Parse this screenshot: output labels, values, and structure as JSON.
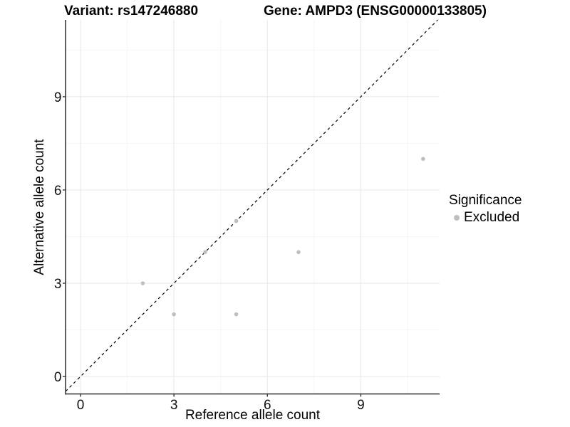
{
  "titles": {
    "left": "Variant: rs147246880",
    "right": "Gene: AMPD3 (ENSG00000133805)"
  },
  "axes": {
    "x": {
      "label": "Reference allele count",
      "tick_labels": [
        "0",
        "3",
        "6",
        "9"
      ]
    },
    "y": {
      "label": "Alternative allele count",
      "tick_labels": [
        "0",
        "3",
        "6",
        "9"
      ]
    }
  },
  "legend": {
    "title": "Significance",
    "items": [
      {
        "label": "Excluded",
        "color": "#bebebe"
      }
    ]
  },
  "chart_data": {
    "type": "scatter",
    "title": "Variant: rs147246880   Gene: AMPD3 (ENSG00000133805)",
    "xlabel": "Reference allele count",
    "ylabel": "Alternative allele count",
    "xlim": [
      -0.48,
      11.53
    ],
    "ylim": [
      -0.56,
      11.47
    ],
    "x_major_ticks": [
      0,
      3,
      6,
      9
    ],
    "y_major_ticks": [
      0,
      3,
      6,
      9
    ],
    "x_minor_ticks": [
      1.5,
      4.5,
      7.5,
      10.5
    ],
    "y_minor_ticks": [
      1.5,
      4.5,
      7.5,
      10.5
    ],
    "grid": true,
    "legend_position": "right",
    "series": [
      {
        "name": "Excluded",
        "color": "#bebebe",
        "points": [
          [
            2,
            3
          ],
          [
            3,
            2
          ],
          [
            4,
            4
          ],
          [
            5,
            2
          ],
          [
            5,
            5
          ],
          [
            7,
            4
          ],
          [
            11,
            7
          ]
        ]
      }
    ],
    "reference_line": {
      "type": "identity y=x",
      "style": "dashed",
      "color": "#000000"
    }
  },
  "colors": {
    "background": "#ffffff",
    "point": "#bebebe",
    "grid_major": "#ebebeb",
    "grid_minor": "#f5f5f5",
    "axis_line": "#4d4d4d",
    "tick_mark": "#333333",
    "tick_text": "#111111",
    "dashed_line": "#000000"
  }
}
